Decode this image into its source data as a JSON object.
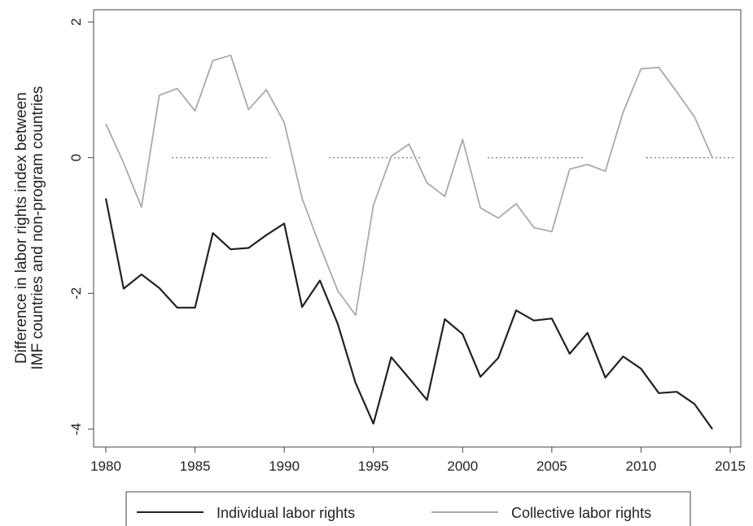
{
  "chart_data": {
    "type": "line",
    "title": "",
    "xlabel": "",
    "ylabel_lines": [
      "Difference in labor rights index between",
      "IMF countries and non-program countries"
    ],
    "xlim": [
      1980,
      2015
    ],
    "ylim": [
      -4,
      2
    ],
    "x_ticks": [
      1980,
      1985,
      1990,
      1995,
      2000,
      2005,
      2010,
      2015
    ],
    "y_ticks": [
      -4,
      -2,
      0,
      2
    ],
    "x_tick_labels": [
      "1980",
      "1985",
      "1990",
      "1995",
      "2000",
      "2005",
      "2010",
      "2015"
    ],
    "y_tick_labels": [
      "-4",
      "-2",
      "0",
      "2"
    ],
    "grid": false,
    "legend_position": "bottom",
    "x": [
      1980,
      1981,
      1982,
      1983,
      1984,
      1985,
      1986,
      1987,
      1988,
      1989,
      1990,
      1991,
      1992,
      1993,
      1994,
      1995,
      1996,
      1997,
      1998,
      1999,
      2000,
      2001,
      2002,
      2003,
      2004,
      2005,
      2006,
      2007,
      2008,
      2009,
      2010,
      2011,
      2012,
      2013,
      2014
    ],
    "series": [
      {
        "name": "Individual labor rights",
        "color": "#222222",
        "values": [
          -0.6,
          -1.93,
          -1.72,
          -1.92,
          -2.21,
          -2.21,
          -1.11,
          -1.35,
          -1.33,
          -1.14,
          -0.97,
          -2.2,
          -1.81,
          -2.45,
          -3.32,
          -3.92,
          -2.94,
          -3.25,
          -3.57,
          -2.38,
          -2.6,
          -3.23,
          -2.95,
          -2.25,
          -2.4,
          -2.37,
          -2.89,
          -2.58,
          -3.24,
          -2.93,
          -3.11,
          -3.47,
          -3.45,
          -3.63,
          -4.0
        ]
      },
      {
        "name": "Collective labor rights",
        "color": "#aaaaaa",
        "values": [
          0.5,
          -0.08,
          -0.73,
          0.92,
          1.02,
          0.69,
          1.43,
          1.51,
          0.71,
          1.0,
          0.52,
          -0.6,
          -1.3,
          -1.96,
          -2.32,
          -0.7,
          0.02,
          0.2,
          -0.37,
          -0.57,
          0.27,
          -0.74,
          -0.89,
          -0.68,
          -1.03,
          -1.09,
          -0.17,
          -0.1,
          -0.2,
          0.67,
          1.31,
          1.33,
          0.97,
          0.6,
          0.0
        ]
      }
    ],
    "reference_line": {
      "y": 0,
      "segments": [
        [
          1983.7,
          1989.2
        ],
        [
          1992.5,
          1997.7
        ],
        [
          2001.4,
          2006.8
        ],
        [
          2010.3,
          2015.2
        ]
      ],
      "color": "#888888"
    }
  }
}
